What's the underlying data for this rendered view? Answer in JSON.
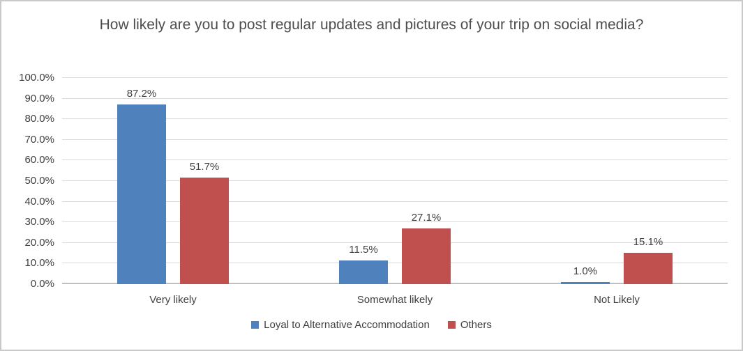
{
  "title": "How likely are you to post regular updates and pictures of your trip on social media?",
  "chart_data": {
    "type": "bar",
    "title": "How likely are you to post regular updates and pictures of your trip on social media?",
    "categories": [
      "Very likely",
      "Somewhat likely",
      "Not Likely"
    ],
    "series": [
      {
        "name": "Loyal to Alternative Accommodation",
        "color": "#4F81BD",
        "values": [
          87.2,
          11.5,
          1.0
        ],
        "labels": [
          "87.2%",
          "11.5%",
          "1.0%"
        ]
      },
      {
        "name": "Others",
        "color": "#C0504D",
        "values": [
          51.7,
          27.1,
          15.1
        ],
        "labels": [
          "51.7%",
          "27.1%",
          "15.1%"
        ]
      }
    ],
    "xlabel": "",
    "ylabel": "",
    "ylim": [
      0,
      100
    ],
    "ytick_step": 10,
    "ytick_labels": [
      "100.0%",
      "90.0%",
      "80.0%",
      "70.0%",
      "60.0%",
      "50.0%",
      "40.0%",
      "30.0%",
      "20.0%",
      "10.0%",
      "0.0%"
    ],
    "grid": true,
    "legend_position": "bottom",
    "gridline_color": "#D9D9D9",
    "axis_line_color": "#BFBFBF",
    "text_color": "#404040"
  }
}
